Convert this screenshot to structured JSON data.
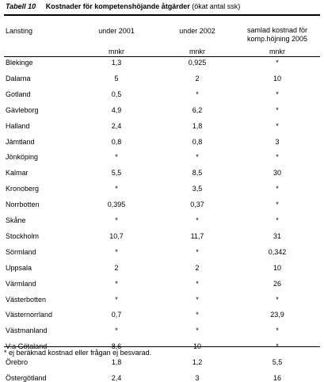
{
  "table": {
    "label": "Tabell 10",
    "title": "Kostnader för kompetenshöjande åtgärder",
    "title_note": "(ökat antal ssk)",
    "headers": {
      "lansting": "Lansting",
      "under_2001": "under 2001",
      "under_2002": "under 2002",
      "samlad_line1": "samlad kostnad för",
      "samlad_line2": "komp.höjning 2005"
    },
    "units": [
      "mnkr",
      "mnkr",
      "mnkr"
    ],
    "rows": [
      {
        "name": "Blekinge",
        "v2001": "1,3",
        "v2002": "0,925",
        "v2005": "*"
      },
      {
        "name": "Dalarna",
        "v2001": "5",
        "v2002": "2",
        "v2005": "10"
      },
      {
        "name": "Gotland",
        "v2001": "0,5",
        "v2002": "*",
        "v2005": "*"
      },
      {
        "name": "Gävleborg",
        "v2001": "4,9",
        "v2002": "6,2",
        "v2005": "*"
      },
      {
        "name": "Halland",
        "v2001": "2,4",
        "v2002": "1,8",
        "v2005": "*"
      },
      {
        "name": "Jämtland",
        "v2001": "0,8",
        "v2002": "0,8",
        "v2005": "3"
      },
      {
        "name": "Jönköping",
        "v2001": "*",
        "v2002": "*",
        "v2005": "*"
      },
      {
        "name": "Kalmar",
        "v2001": "5,5",
        "v2002": "8,5",
        "v2005": "30"
      },
      {
        "name": "Kronoberg",
        "v2001": "*",
        "v2002": "3,5",
        "v2005": "*"
      },
      {
        "name": "Norrbotten",
        "v2001": "0,395",
        "v2002": "0,37",
        "v2005": "*"
      },
      {
        "name": "Skåne",
        "v2001": "*",
        "v2002": "*",
        "v2005": "*"
      },
      {
        "name": "Stockholm",
        "v2001": "10,7",
        "v2002": "11,7",
        "v2005": "31"
      },
      {
        "name": "Sörmland",
        "v2001": "*",
        "v2002": "*",
        "v2005": "0,342"
      },
      {
        "name": "Uppsala",
        "v2001": "2",
        "v2002": "2",
        "v2005": "10"
      },
      {
        "name": "Värmland",
        "v2001": "*",
        "v2002": "*",
        "v2005": "26"
      },
      {
        "name": "Västerbotten",
        "v2001": "*",
        "v2002": "*",
        "v2005": "*"
      },
      {
        "name": "Västernorrland",
        "v2001": "0,7",
        "v2002": "*",
        "v2005": "23,9"
      },
      {
        "name": "Västmanland",
        "v2001": "*",
        "v2002": "*",
        "v2005": "*"
      },
      {
        "name": "V:a Götaland",
        "v2001": "8,6",
        "v2002": "10",
        "v2005": "*"
      },
      {
        "name": "Örebro",
        "v2001": "1,8",
        "v2002": "1,2",
        "v2005": "5,5"
      },
      {
        "name": "Östergötland",
        "v2001": "2,4",
        "v2002": "3",
        "v2005": "16"
      }
    ],
    "footnote": "* ej beräknad kostnad eller frågan ej besvarad."
  }
}
